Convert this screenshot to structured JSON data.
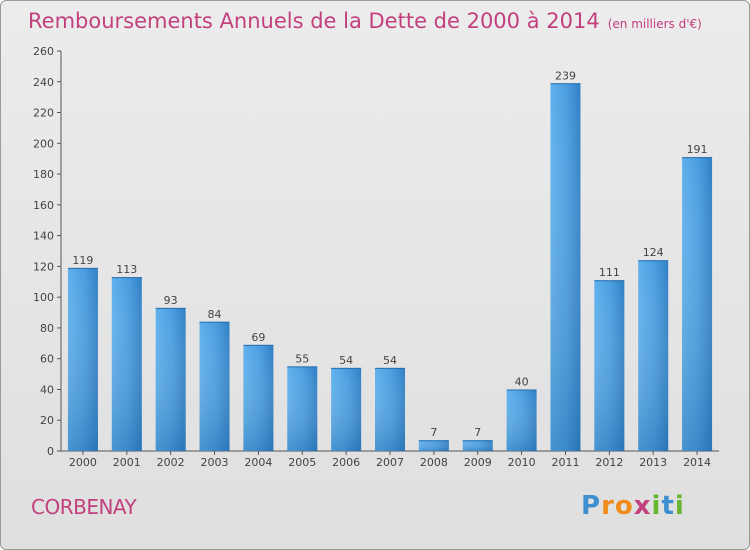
{
  "chart_data": {
    "type": "bar",
    "title": "Remboursements Annuels de la Dette de 2000 à 2014",
    "unit_note": "(en milliers d'€)",
    "categories": [
      "2000",
      "2001",
      "2002",
      "2003",
      "2004",
      "2005",
      "2006",
      "2007",
      "2008",
      "2009",
      "2010",
      "2011",
      "2012",
      "2013",
      "2014"
    ],
    "values": [
      119,
      113,
      93,
      84,
      69,
      55,
      54,
      54,
      7,
      7,
      40,
      239,
      111,
      124,
      191
    ],
    "ylim": [
      0,
      260
    ],
    "yticks": [
      0,
      20,
      40,
      60,
      80,
      100,
      120,
      140,
      160,
      180,
      200,
      220,
      240,
      260
    ],
    "xlabel": "",
    "ylabel": "",
    "grid": false,
    "bar_color": "#4a9de0"
  },
  "location": "CORBENAY",
  "logo": {
    "letters": [
      "P",
      "r",
      "o",
      "x",
      "i",
      "t",
      "i"
    ],
    "colors": [
      "#3e8fd0",
      "#f08a1c",
      "#f08a1c",
      "#c2407d",
      "#67b531",
      "#3e8fd0",
      "#67b531"
    ]
  }
}
